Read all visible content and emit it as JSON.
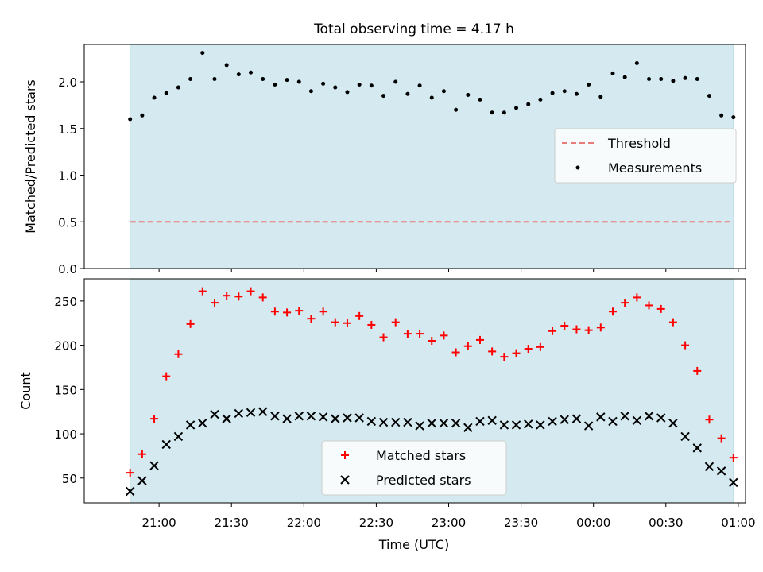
{
  "title": "Total observing time = 4.17 h",
  "colors": {
    "band": "#d4eaf0",
    "threshold": "#e87a7a",
    "measurement": "#000000",
    "matched": "#ff0000",
    "predicted": "#000000"
  },
  "chart_data": [
    {
      "type": "scatter",
      "panel": "top",
      "ylabel": "Matched/Predicted stars",
      "ylim": [
        0,
        2.4
      ],
      "yticks": [
        "0.0",
        "0.5",
        "1.0",
        "1.5",
        "2.0"
      ],
      "observing_window": [
        "20:48",
        "00:58"
      ],
      "legend": {
        "position": "center-right",
        "entries": [
          "Threshold",
          "Measurements"
        ]
      },
      "threshold": {
        "name": "Threshold",
        "value": 0.5,
        "style": "dashed"
      },
      "x": [
        "20:48",
        "20:53",
        "20:58",
        "21:03",
        "21:08",
        "21:13",
        "21:18",
        "21:23",
        "21:28",
        "21:33",
        "21:38",
        "21:43",
        "21:48",
        "21:53",
        "21:58",
        "22:03",
        "22:08",
        "22:13",
        "22:18",
        "22:23",
        "22:28",
        "22:33",
        "22:38",
        "22:43",
        "22:48",
        "22:53",
        "22:58",
        "23:03",
        "23:08",
        "23:13",
        "23:18",
        "23:23",
        "23:28",
        "23:33",
        "23:38",
        "23:43",
        "23:48",
        "23:53",
        "23:58",
        "00:03",
        "00:08",
        "00:13",
        "00:18",
        "00:23",
        "00:28",
        "00:33",
        "00:38",
        "00:43",
        "00:48",
        "00:53",
        "00:58"
      ],
      "series": [
        {
          "name": "Measurements",
          "values": [
            1.6,
            1.64,
            1.83,
            1.88,
            1.94,
            2.03,
            2.31,
            2.03,
            2.18,
            2.08,
            2.1,
            2.03,
            1.97,
            2.02,
            2.0,
            1.9,
            1.98,
            1.94,
            1.89,
            1.97,
            1.96,
            1.85,
            2.0,
            1.87,
            1.96,
            1.83,
            1.9,
            1.7,
            1.86,
            1.81,
            1.67,
            1.67,
            1.72,
            1.76,
            1.81,
            1.88,
            1.9,
            1.87,
            1.97,
            1.84,
            2.09,
            2.05,
            2.2,
            2.03,
            2.03,
            2.01,
            2.04,
            2.03,
            1.85,
            1.64,
            1.62
          ]
        }
      ]
    },
    {
      "type": "scatter",
      "panel": "bottom",
      "xlabel": "Time (UTC)",
      "ylabel": "Count",
      "ylim": [
        22,
        275
      ],
      "yticks": [
        "50",
        "100",
        "150",
        "200",
        "250"
      ],
      "xticks": [
        "21:00",
        "21:30",
        "22:00",
        "22:30",
        "23:00",
        "23:30",
        "00:00",
        "00:30",
        "01:00"
      ],
      "observing_window": [
        "20:48",
        "00:58"
      ],
      "legend": {
        "position": "lower-center",
        "entries": [
          "Matched stars",
          "Predicted stars"
        ]
      },
      "x": [
        "20:48",
        "20:53",
        "20:58",
        "21:03",
        "21:08",
        "21:13",
        "21:18",
        "21:23",
        "21:28",
        "21:33",
        "21:38",
        "21:43",
        "21:48",
        "21:53",
        "21:58",
        "22:03",
        "22:08",
        "22:13",
        "22:18",
        "22:23",
        "22:28",
        "22:33",
        "22:38",
        "22:43",
        "22:48",
        "22:53",
        "22:58",
        "23:03",
        "23:08",
        "23:13",
        "23:18",
        "23:23",
        "23:28",
        "23:33",
        "23:38",
        "23:43",
        "23:48",
        "23:53",
        "23:58",
        "00:03",
        "00:08",
        "00:13",
        "00:18",
        "00:23",
        "00:28",
        "00:33",
        "00:38",
        "00:43",
        "00:48",
        "00:53",
        "00:58"
      ],
      "series": [
        {
          "name": "Matched stars",
          "marker": "plus",
          "values": [
            56,
            77,
            117,
            165,
            190,
            224,
            261,
            248,
            256,
            255,
            261,
            254,
            238,
            237,
            239,
            230,
            238,
            226,
            225,
            233,
            223,
            209,
            226,
            213,
            213,
            205,
            211,
            192,
            199,
            206,
            193,
            187,
            191,
            196,
            198,
            216,
            222,
            218,
            217,
            220,
            238,
            248,
            254,
            245,
            241,
            226,
            200,
            171,
            116,
            95,
            73
          ]
        },
        {
          "name": "Predicted stars",
          "marker": "x",
          "values": [
            35,
            47,
            64,
            88,
            97,
            110,
            112,
            122,
            117,
            123,
            124,
            125,
            120,
            117,
            120,
            120,
            119,
            117,
            118,
            118,
            114,
            113,
            113,
            113,
            109,
            112,
            112,
            112,
            107,
            114,
            115,
            110,
            110,
            111,
            110,
            114,
            116,
            117,
            109,
            119,
            114,
            120,
            115,
            120,
            118,
            112,
            97,
            84,
            63,
            58,
            45
          ]
        }
      ]
    }
  ]
}
